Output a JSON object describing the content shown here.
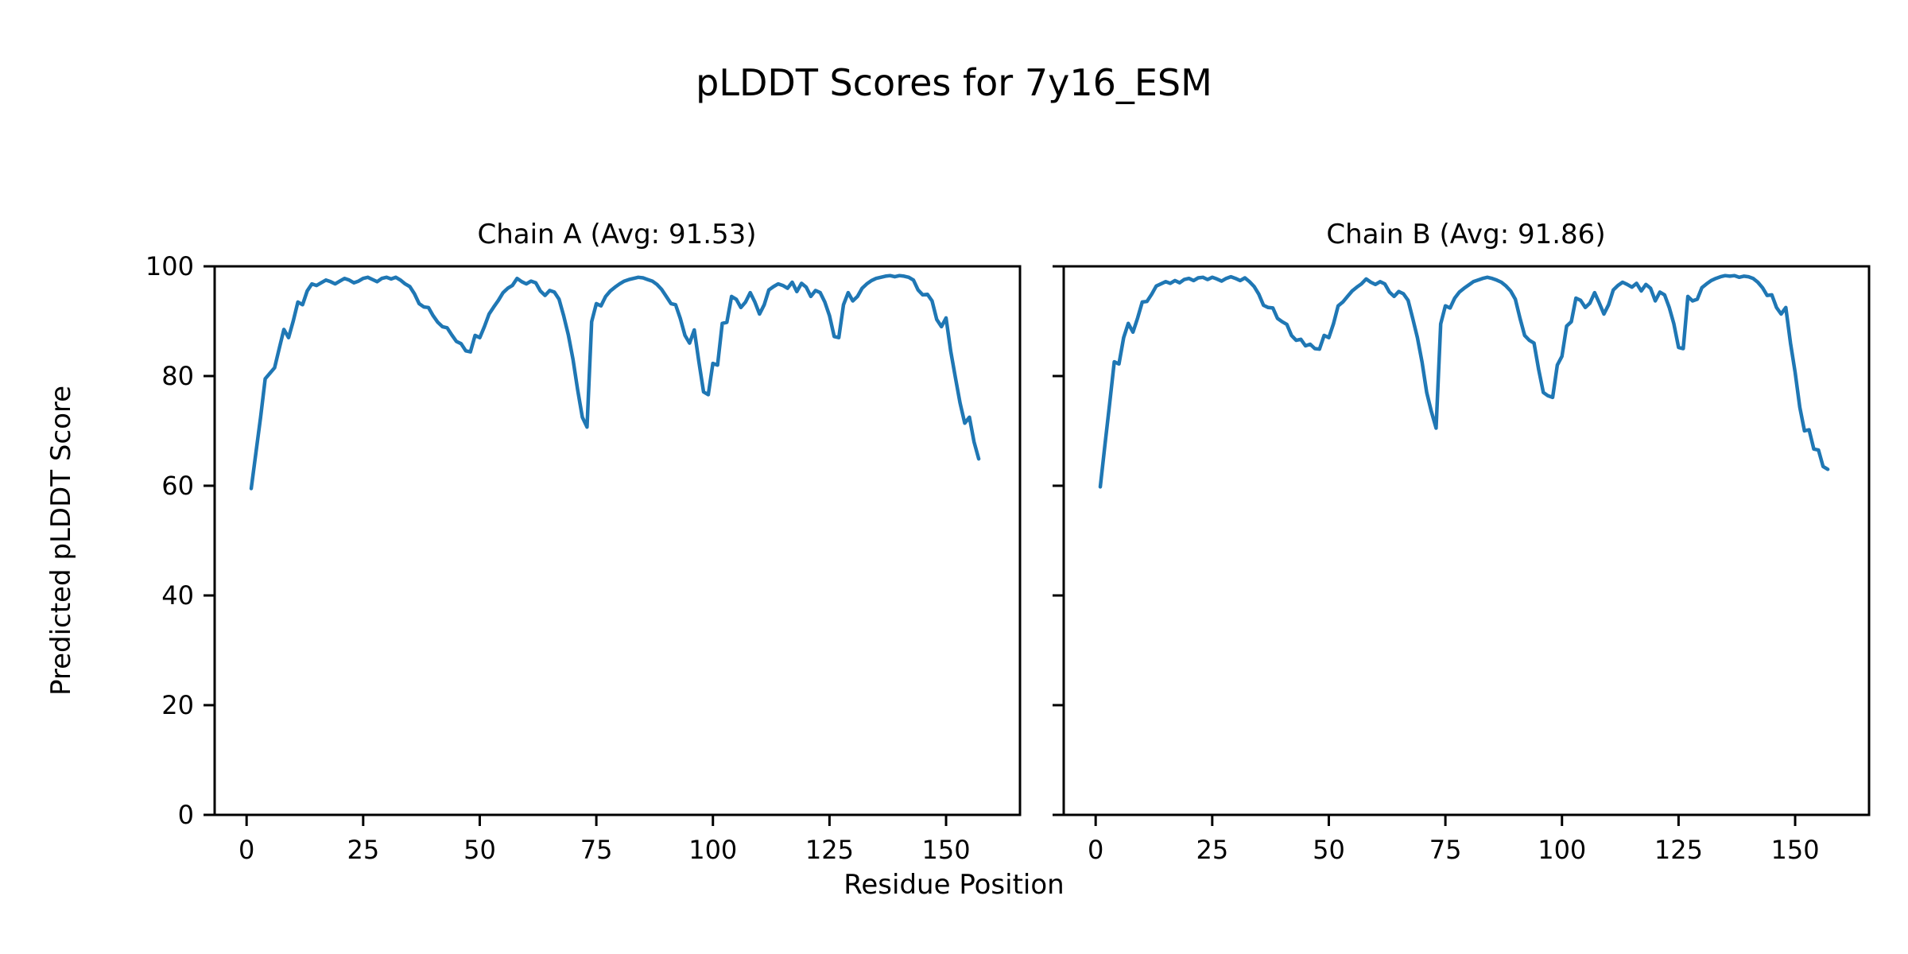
{
  "figure": {
    "title": "pLDDT Scores for 7y16_ESM",
    "xlabel": "Residue Position",
    "ylabel": "Predicted pLDDT Score",
    "line_color": "#1f77b4",
    "axis_color": "#000000",
    "background": "#ffffff"
  },
  "chart_data": [
    {
      "type": "line",
      "title": "Chain A (Avg: 91.53)",
      "chain": "A",
      "avg": 91.53,
      "x_start": 1,
      "xticks": [
        0,
        25,
        50,
        75,
        100,
        125,
        150
      ],
      "yticks": [
        0,
        20,
        40,
        60,
        80,
        100
      ],
      "xlim": [
        -6.85,
        165.85
      ],
      "ylim": [
        0,
        100
      ],
      "show_y_labels": true,
      "values": [
        59.5,
        66.0,
        72.5,
        79.5,
        80.5,
        81.5,
        85.0,
        88.5,
        87.0,
        90.0,
        93.5,
        93.0,
        95.5,
        96.8,
        96.5,
        97.0,
        97.5,
        97.2,
        96.8,
        97.3,
        97.8,
        97.5,
        97.0,
        97.3,
        97.8,
        98.0,
        97.6,
        97.2,
        97.8,
        98.0,
        97.7,
        98.0,
        97.5,
        96.8,
        96.3,
        95.0,
        93.2,
        92.6,
        92.5,
        91.0,
        89.8,
        89.0,
        88.8,
        87.5,
        86.3,
        85.9,
        84.6,
        84.4,
        87.4,
        87.0,
        89.0,
        91.3,
        92.6,
        93.8,
        95.2,
        96.0,
        96.5,
        97.8,
        97.2,
        96.8,
        97.3,
        97.0,
        95.5,
        94.7,
        95.6,
        95.3,
        94.0,
        91.0,
        87.5,
        83.0,
        77.5,
        72.5,
        70.7,
        89.9,
        93.2,
        92.8,
        94.5,
        95.5,
        96.2,
        96.8,
        97.3,
        97.6,
        97.8,
        98.0,
        97.9,
        97.6,
        97.3,
        96.7,
        95.8,
        94.5,
        93.2,
        93.0,
        90.5,
        87.4,
        86.0,
        88.4,
        82.6,
        77.1,
        76.6,
        82.3,
        82.0,
        89.6,
        89.8,
        94.5,
        94.0,
        92.5,
        93.5,
        95.2,
        93.5,
        91.3,
        93.0,
        95.7,
        96.3,
        96.8,
        96.5,
        96.0,
        97.1,
        95.4,
        96.9,
        96.2,
        94.5,
        95.6,
        95.2,
        93.5,
        91.0,
        87.2,
        87.0,
        93.0,
        95.2,
        93.7,
        94.5,
        96.0,
        96.8,
        97.4,
        97.8,
        98.0,
        98.2,
        98.3,
        98.1,
        98.3,
        98.2,
        98.0,
        97.5,
        95.7,
        94.8,
        94.9,
        93.7,
        90.3,
        89.0,
        90.6,
        84.5,
        79.7,
        75.1,
        71.4,
        72.5,
        68.0,
        64.9
      ]
    },
    {
      "type": "line",
      "title": "Chain B (Avg: 91.86)",
      "chain": "B",
      "avg": 91.86,
      "x_start": 1,
      "xticks": [
        0,
        25,
        50,
        75,
        100,
        125,
        150
      ],
      "yticks": [
        0,
        20,
        40,
        60,
        80,
        100
      ],
      "xlim": [
        -6.85,
        165.85
      ],
      "ylim": [
        0,
        100
      ],
      "show_y_labels": false,
      "values": [
        59.8,
        67.5,
        75.0,
        82.6,
        82.2,
        87.0,
        89.6,
        88.0,
        90.6,
        93.5,
        93.6,
        94.9,
        96.4,
        96.8,
        97.2,
        96.9,
        97.4,
        97.0,
        97.6,
        97.8,
        97.4,
        97.9,
        98.0,
        97.6,
        98.0,
        97.7,
        97.3,
        97.8,
        98.1,
        97.8,
        97.4,
        97.9,
        97.2,
        96.3,
        94.9,
        92.9,
        92.5,
        92.4,
        90.5,
        89.9,
        89.4,
        87.4,
        86.5,
        86.7,
        85.5,
        85.8,
        85.0,
        84.9,
        87.4,
        87.0,
        89.5,
        92.8,
        93.5,
        94.5,
        95.5,
        96.2,
        96.8,
        97.7,
        97.1,
        96.7,
        97.2,
        96.8,
        95.3,
        94.5,
        95.4,
        95.0,
        93.8,
        90.5,
        87.0,
        82.5,
        77.0,
        73.5,
        70.5,
        89.5,
        92.8,
        92.4,
        94.2,
        95.3,
        96.0,
        96.6,
        97.2,
        97.5,
        97.8,
        98.0,
        97.8,
        97.5,
        97.1,
        96.4,
        95.5,
        94.0,
        90.5,
        87.4,
        86.5,
        86.0,
        81.2,
        77.0,
        76.4,
        76.1,
        82.0,
        83.6,
        89.1,
        89.9,
        94.2,
        93.8,
        92.5,
        93.3,
        95.2,
        93.3,
        91.3,
        93.0,
        95.7,
        96.5,
        97.1,
        96.7,
        96.2,
        96.9,
        95.5,
        96.7,
        96.0,
        93.7,
        95.3,
        94.8,
        92.5,
        89.5,
        85.2,
        85.0,
        94.5,
        93.7,
        94.0,
        96.1,
        96.8,
        97.4,
        97.8,
        98.1,
        98.3,
        98.2,
        98.3,
        98.0,
        98.2,
        98.1,
        97.8,
        97.1,
        96.1,
        94.7,
        94.8,
        92.5,
        91.3,
        92.5,
        86.0,
        80.7,
        74.3,
        70.0,
        70.2,
        66.7,
        66.5,
        63.5,
        63.0
      ]
    }
  ]
}
